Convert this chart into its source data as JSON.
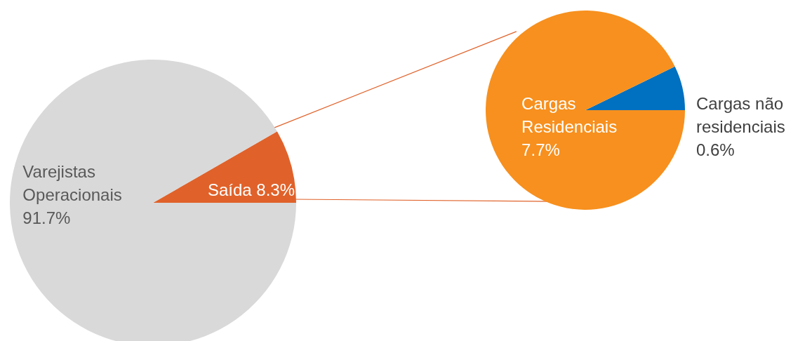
{
  "chart_data": [
    {
      "type": "pie",
      "categories": [
        "Saída",
        "Varejistas Operacionais"
      ],
      "values": [
        8.3,
        91.7
      ],
      "colors": [
        "#e0622a",
        "#d9d9d9"
      ],
      "value_labels": [
        "8.3%",
        "91.7%"
      ]
    },
    {
      "type": "pie",
      "categories": [
        "Cargas não residenciais",
        "Cargas Residenciais"
      ],
      "values": [
        0.6,
        7.7
      ],
      "colors": [
        "#0070c0",
        "#f7901e"
      ],
      "value_labels": [
        "0.6%",
        "7.7%"
      ]
    }
  ]
}
